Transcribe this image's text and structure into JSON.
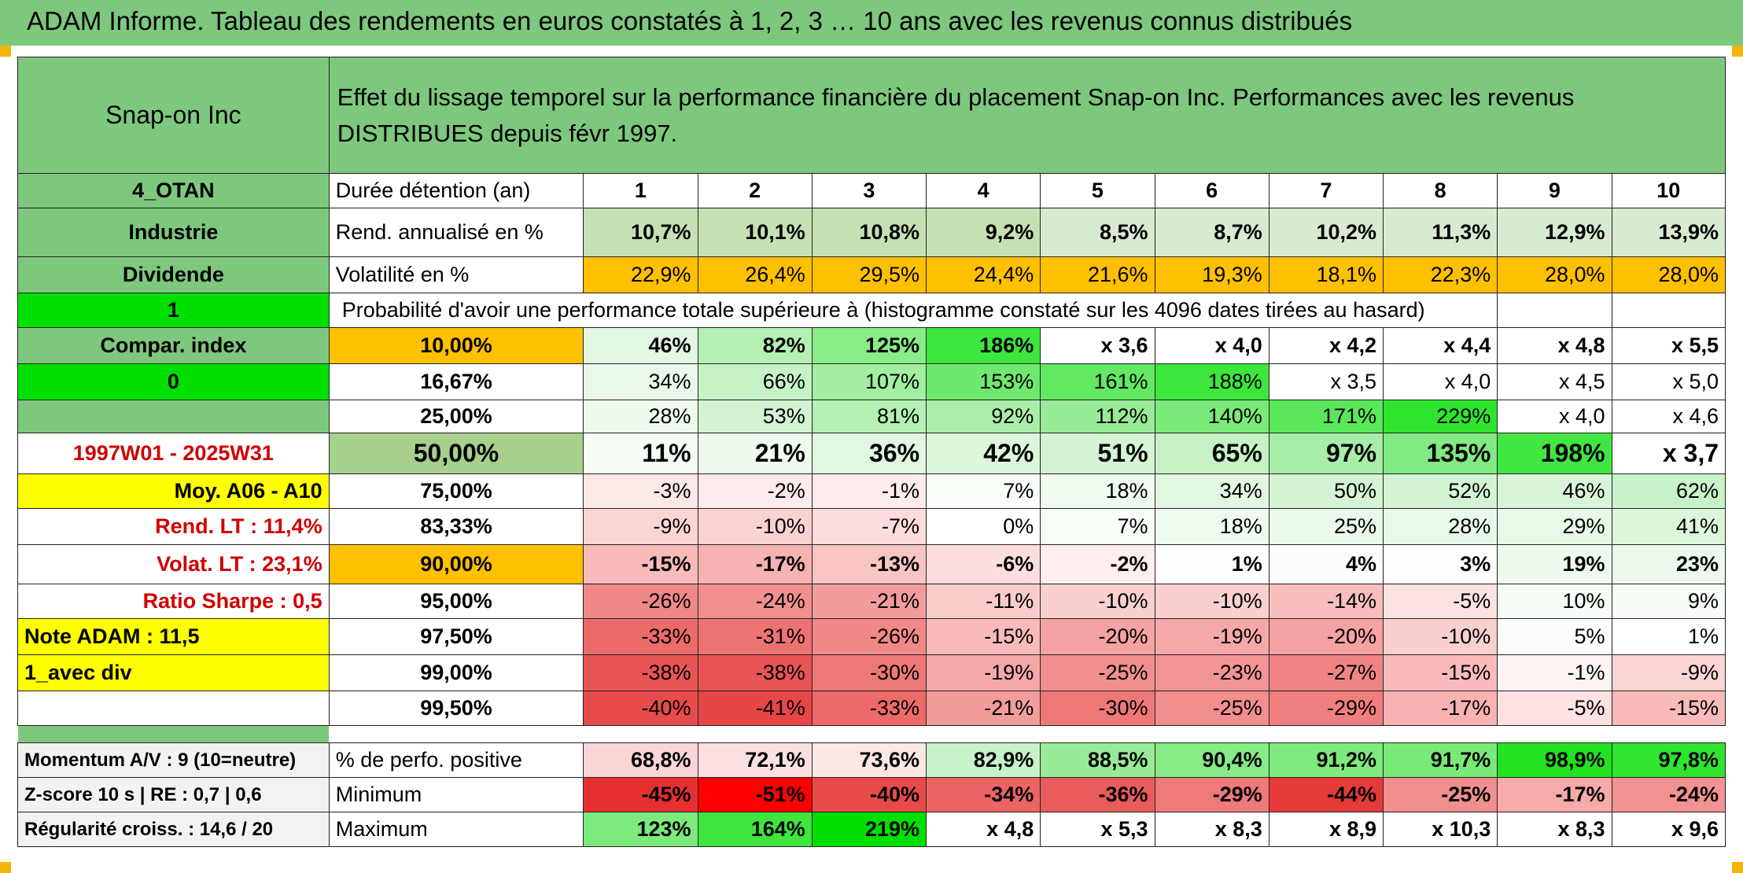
{
  "title": "ADAM Informe. Tableau des rendements en euros constatés à 1, 2, 3 … 10 ans avec les revenus connus distribués",
  "company": "Snap-on Inc",
  "description": "Effet du lissage temporel sur la performance financière du placement Snap-on Inc. Performances avec les revenus DISTRIBUES depuis févr 1997.",
  "left_labels": {
    "otan": "4_OTAN",
    "sector": "Industrie",
    "dividend": "Dividende",
    "one": "1",
    "compar": "Compar. index",
    "zero": "0",
    "period": "1997W01 - 2025W31",
    "moy": "Moy. A06 - A10",
    "rend_lt": "Rend. LT :   11,4%",
    "volat_lt": "Volat. LT :   23,1%",
    "sharpe": "Ratio Sharpe :    0,5",
    "note": "Note ADAM : 11,5",
    "avec_div": "1_avec div",
    "momentum": "Momentum A/V : 9 (10=neutre)",
    "zscore": "Z-score 10 s | RE : 0,7 | 0,6",
    "regularite": "Régularité croiss. : 14,6 / 20"
  },
  "header_row": {
    "label": "Durée détention (an)",
    "years": [
      "1",
      "2",
      "3",
      "4",
      "5",
      "6",
      "7",
      "8",
      "9",
      "10"
    ]
  },
  "rend_row": {
    "label": "Rend. annualisé en %",
    "values": [
      "10,7%",
      "10,1%",
      "10,8%",
      "9,2%",
      "8,5%",
      "8,7%",
      "10,2%",
      "11,3%",
      "12,9%",
      "13,9%"
    ]
  },
  "vol_row": {
    "label": "Volatilité en %",
    "values": [
      "22,9%",
      "26,4%",
      "29,5%",
      "24,4%",
      "21,6%",
      "19,3%",
      "18,1%",
      "22,3%",
      "28,0%",
      "28,0%"
    ]
  },
  "prob_heading": "Probabilité d'avoir une performance totale supérieure à (histogramme constaté sur les 4096 dates tirées au hasard)",
  "prob_rows": [
    {
      "pct": "10,00%",
      "values": [
        "46%",
        "82%",
        "125%",
        "186%",
        "x 3,6",
        "x 4,0",
        "x 4,2",
        "x 4,4",
        "x 4,8",
        "x 5,5"
      ],
      "colors": [
        "#e2f6e2",
        "#b4f0b4",
        "#88ec88",
        "#3ce63c",
        "#ffffff",
        "#ffffff",
        "#ffffff",
        "#ffffff",
        "#ffffff",
        "#ffffff"
      ]
    },
    {
      "pct": "16,67%",
      "values": [
        "34%",
        "66%",
        "107%",
        "153%",
        "161%",
        "188%",
        "x 3,5",
        "x 4,0",
        "x 4,5",
        "x 5,0"
      ],
      "colors": [
        "#eaf8ea",
        "#c6f2c6",
        "#a2ee a2",
        "#6ee86e",
        "#62e862",
        "#3ce63c",
        "#ffffff",
        "#ffffff",
        "#ffffff",
        "#ffffff"
      ]
    },
    {
      "pct": "25,00%",
      "values": [
        "28%",
        "53%",
        "81%",
        "92%",
        "112%",
        "140%",
        "171%",
        "229%",
        "x 4,0",
        "x 4,6"
      ],
      "colors": [
        "#eefaee",
        "#d2f4d2",
        "#b4f0b4",
        "#aaeeaa",
        "#98ec98",
        "#7aea7a",
        "#5ae85a",
        "#2ee42e",
        "#ffffff",
        "#ffffff"
      ]
    },
    {
      "pct": "50,00%",
      "values": [
        "11%",
        "21%",
        "36%",
        "42%",
        "51%",
        "65%",
        "97%",
        "135%",
        "198%",
        "x 3,7"
      ],
      "colors": [
        "#f6fcf6",
        "#eefaee",
        "#e2f6e2",
        "#dcf6dc",
        "#d4f4d4",
        "#c6f2c6",
        "#a8eea8",
        "#82ea82",
        "#42e642",
        "#ffffff"
      ]
    },
    {
      "pct": "75,00%",
      "values": [
        "-3%",
        "-2%",
        "-1%",
        "7%",
        "18%",
        "34%",
        "50%",
        "52%",
        "46%",
        "62%"
      ],
      "colors": [
        "#fde8e8",
        "#fdeaea",
        "#fdecec",
        "#f8fdf8",
        "#f0fbf0",
        "#e2f6e2",
        "#d4f4d4",
        "#d2f4d2",
        "#d8f4d8",
        "#c8f2c8"
      ]
    },
    {
      "pct": "83,33%",
      "values": [
        "-9%",
        "-10%",
        "-7%",
        "0%",
        "7%",
        "18%",
        "25%",
        "28%",
        "29%",
        "41%"
      ],
      "colors": [
        "#fbd4d4",
        "#fbd2d2",
        "#fcdcdc",
        "#ffffff",
        "#f8fdf8",
        "#f0fbf0",
        "#ebf9eb",
        "#e9f9e9",
        "#e8f9e8",
        "#dcf6dc"
      ]
    },
    {
      "pct": "90,00%",
      "values": [
        "-15%",
        "-17%",
        "-13%",
        "-6%",
        "-2%",
        "1%",
        "4%",
        "3%",
        "19%",
        "23%"
      ],
      "colors": [
        "#f8baba",
        "#f7b2b2",
        "#f9c4c4",
        "#fcdede",
        "#feeeee",
        "#fefefe",
        "#fafdfa",
        "#fbfefb",
        "#eefaee",
        "#ecf9ec"
      ]
    },
    {
      "pct": "95,00%",
      "values": [
        "-26%",
        "-24%",
        "-21%",
        "-11%",
        "-10%",
        "-10%",
        "-14%",
        "-5%",
        "10%",
        "9%"
      ],
      "colors": [
        "#f08888",
        "#f29090",
        "#f39c9c",
        "#f9cccc",
        "#facfcf",
        "#facfcf",
        "#f8bebe",
        "#fde2e2",
        "#f6fcf6",
        "#f7fcf7"
      ]
    },
    {
      "pct": "97,50%",
      "values": [
        "-33%",
        "-31%",
        "-26%",
        "-15%",
        "-20%",
        "-19%",
        "-20%",
        "-10%",
        "5%",
        "1%"
      ],
      "colors": [
        "#ec6a6a",
        "#ed7272",
        "#f08888",
        "#f8baba",
        "#f4a2a2",
        "#f5a8a8",
        "#f4a2a2",
        "#facfcf",
        "#fafdfa",
        "#fefffe"
      ]
    },
    {
      "pct": "99,00%",
      "values": [
        "-38%",
        "-38%",
        "-30%",
        "-19%",
        "-25%",
        "-23%",
        "-27%",
        "-15%",
        "-1%",
        "-9%"
      ],
      "colors": [
        "#e85454",
        "#e85454",
        "#ee7878",
        "#f5a8a8",
        "#f18e8e",
        "#f29494",
        "#f08484",
        "#f8baba",
        "#fef4f4",
        "#fbd4d4"
      ]
    },
    {
      "pct": "99,50%",
      "values": [
        "-40%",
        "-41%",
        "-33%",
        "-21%",
        "-30%",
        "-25%",
        "-29%",
        "-17%",
        "-5%",
        "-15%"
      ],
      "colors": [
        "#e64a4a",
        "#e64646",
        "#ec6a6a",
        "#f39c9c",
        "#ee7878",
        "#f18e8e",
        "#ef7e7e",
        "#f7b2b2",
        "#fde2e2",
        "#f8baba"
      ]
    }
  ],
  "stat_rows": [
    {
      "label": "% de perfo. positive",
      "values": [
        "68,8%",
        "72,1%",
        "73,6%",
        "82,9%",
        "88,5%",
        "90,4%",
        "91,2%",
        "91,7%",
        "98,9%",
        "97,8%"
      ],
      "colors": [
        "#fbd6d6",
        "#fce0e0",
        "#fde6e6",
        "#c8f2c8",
        "#98ec98",
        "#86ea86",
        "#7eea7e",
        "#78ea78",
        "#22e222",
        "#2ee42e"
      ]
    },
    {
      "label": "Minimum",
      "values": [
        "-45%",
        "-51%",
        "-40%",
        "-34%",
        "-36%",
        "-29%",
        "-44%",
        "-25%",
        "-17%",
        "-24%"
      ],
      "colors": [
        "#e63030",
        "#ff0000",
        "#e84a4a",
        "#ec6464",
        "#ea5c5c",
        "#ee7a7a",
        "#e63a3a",
        "#f18e8e",
        "#f6aaaa",
        "#f29292"
      ]
    },
    {
      "label": "Maximum",
      "values": [
        "123%",
        "164%",
        "219%",
        "x 4,8",
        "x 5,3",
        "x 8,3",
        "x 8,9",
        "x 10,3",
        "x 8,3",
        "x 9,6"
      ],
      "colors": [
        "#7cea7c",
        "#3ee63e",
        "#00e000",
        "#ffffff",
        "#ffffff",
        "#ffffff",
        "#ffffff",
        "#ffffff",
        "#ffffff",
        "#ffffff"
      ]
    }
  ]
}
